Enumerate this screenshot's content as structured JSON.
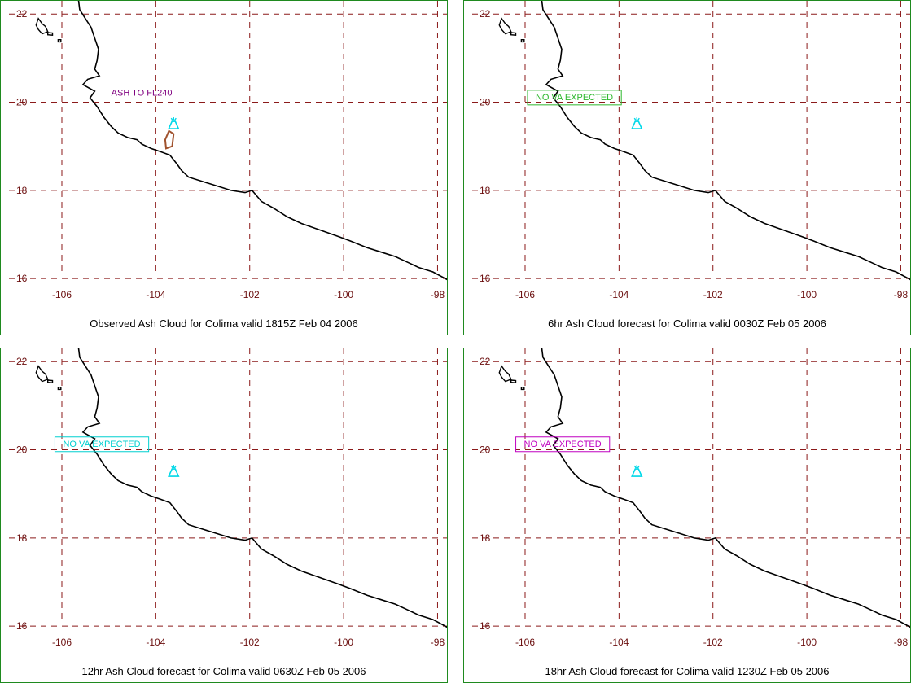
{
  "panels": [
    {
      "caption": "Observed Ash Cloud for Colima valid 1815Z Feb 04 2006",
      "label": "ASH TO FL240",
      "label_color": "#800080",
      "label_boxed": false,
      "label_lon": -104.3,
      "label_lat": 20.15,
      "ash_polygon": [
        [
          -103.72,
          19.35
        ],
        [
          -103.62,
          19.28
        ],
        [
          -103.65,
          19.0
        ],
        [
          -103.78,
          18.95
        ],
        [
          -103.8,
          19.15
        ]
      ],
      "ash_color": "#a0522d"
    },
    {
      "caption": "6hr Ash Cloud forecast for Colima valid 0030Z Feb 05 2006",
      "label": "NO VA EXPECTED",
      "label_color": "#2db82d",
      "label_boxed": true,
      "label_lon": -104.95,
      "label_lat": 20.05,
      "ash_polygon": []
    },
    {
      "caption": "12hr Ash Cloud forecast for Colima valid 0630Z Feb 05 2006",
      "label": "NO VA EXPECTED",
      "label_color": "#00d0d0",
      "label_boxed": true,
      "label_lon": -105.15,
      "label_lat": 20.07,
      "ash_polygon": []
    },
    {
      "caption": "18hr Ash Cloud forecast for Colima valid 1230Z Feb 05 2006",
      "label": "NO VA EXPECTED",
      "label_color": "#c000c0",
      "label_boxed": true,
      "label_lon": -105.2,
      "label_lat": 20.07,
      "ash_polygon": []
    }
  ],
  "map": {
    "lon_ticks": [
      "-106",
      "-104",
      "-102",
      "-100",
      "-98"
    ],
    "lat_ticks": [
      "22",
      "20",
      "18",
      "16"
    ],
    "lon_range": [
      -107.3,
      -97.8
    ],
    "lat_range": [
      15.8,
      22.3
    ],
    "grid_color": "#8b1a1a",
    "tick_label_color": "#6b0f0f",
    "coast_color": "#000000",
    "volcano": {
      "name": "Colima",
      "lon": -103.62,
      "lat": 19.51,
      "color": "#00d8e8"
    },
    "coastline": [
      [
        -105.65,
        22.35
      ],
      [
        -105.62,
        22.1
      ],
      [
        -105.5,
        21.9
      ],
      [
        -105.38,
        21.7
      ],
      [
        -105.3,
        21.45
      ],
      [
        -105.22,
        21.2
      ],
      [
        -105.25,
        20.95
      ],
      [
        -105.3,
        20.75
      ],
      [
        -105.2,
        20.6
      ],
      [
        -105.45,
        20.52
      ],
      [
        -105.55,
        20.4
      ],
      [
        -105.3,
        20.25
      ],
      [
        -105.4,
        20.1
      ],
      [
        -105.25,
        19.9
      ],
      [
        -105.1,
        19.65
      ],
      [
        -104.95,
        19.45
      ],
      [
        -104.8,
        19.3
      ],
      [
        -104.6,
        19.2
      ],
      [
        -104.4,
        19.15
      ],
      [
        -104.3,
        19.05
      ],
      [
        -104.1,
        18.95
      ],
      [
        -103.9,
        18.88
      ],
      [
        -103.7,
        18.8
      ],
      [
        -103.55,
        18.6
      ],
      [
        -103.45,
        18.45
      ],
      [
        -103.3,
        18.3
      ],
      [
        -103.0,
        18.2
      ],
      [
        -102.7,
        18.1
      ],
      [
        -102.4,
        18.0
      ],
      [
        -102.1,
        17.95
      ],
      [
        -101.95,
        18.0
      ],
      [
        -101.75,
        17.75
      ],
      [
        -101.5,
        17.6
      ],
      [
        -101.2,
        17.4
      ],
      [
        -100.9,
        17.25
      ],
      [
        -100.5,
        17.1
      ],
      [
        -100.1,
        16.95
      ],
      [
        -99.85,
        16.85
      ],
      [
        -99.5,
        16.7
      ],
      [
        -99.2,
        16.6
      ],
      [
        -98.9,
        16.5
      ],
      [
        -98.6,
        16.35
      ],
      [
        -98.4,
        16.25
      ],
      [
        -98.1,
        16.15
      ],
      [
        -97.75,
        15.95
      ]
    ],
    "islands": [
      [
        [
          -106.5,
          21.9
        ],
        [
          -106.42,
          21.78
        ],
        [
          -106.35,
          21.72
        ],
        [
          -106.3,
          21.6
        ],
        [
          -106.42,
          21.55
        ],
        [
          -106.5,
          21.65
        ],
        [
          -106.55,
          21.75
        ],
        [
          -106.5,
          21.9
        ]
      ],
      [
        [
          -106.3,
          21.58
        ],
        [
          -106.2,
          21.57
        ],
        [
          -106.2,
          21.52
        ],
        [
          -106.3,
          21.53
        ],
        [
          -106.3,
          21.58
        ]
      ],
      [
        [
          -106.08,
          21.42
        ],
        [
          -106.02,
          21.42
        ],
        [
          -106.02,
          21.37
        ],
        [
          -106.08,
          21.37
        ],
        [
          -106.08,
          21.42
        ]
      ]
    ]
  }
}
